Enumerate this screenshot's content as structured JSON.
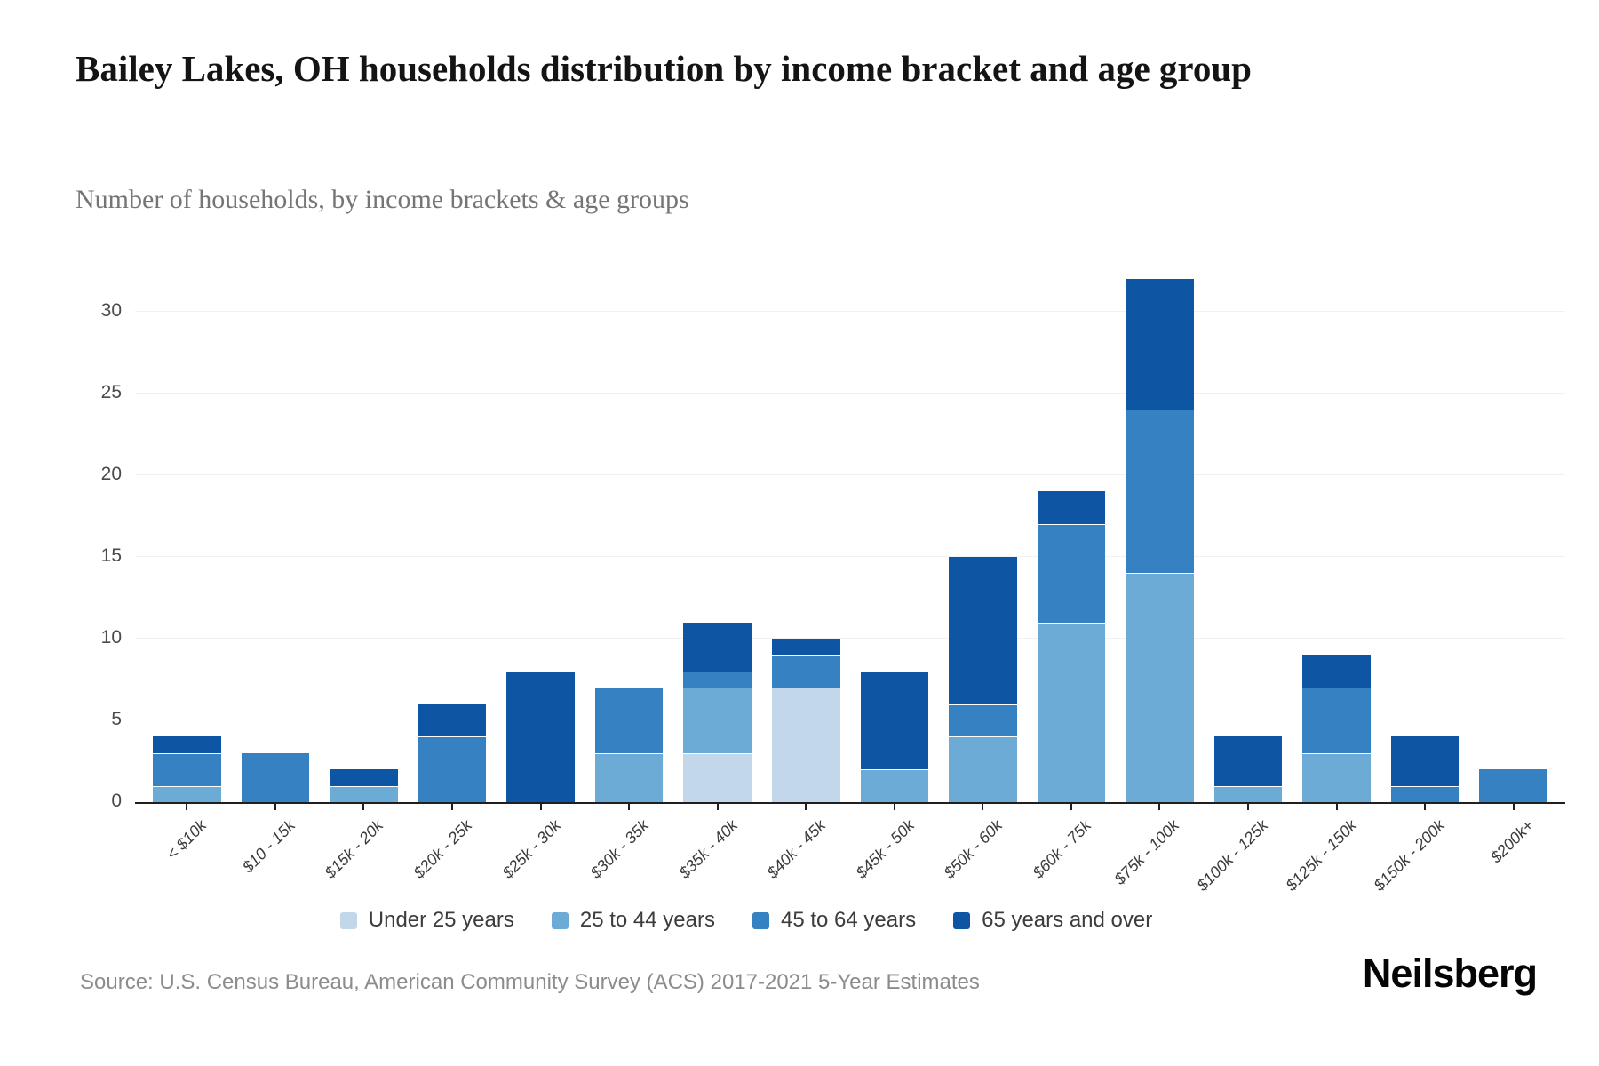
{
  "header": {
    "title": "Bailey Lakes, OH households distribution by income bracket and age group",
    "subtitle": "Number of households, by income brackets & age groups"
  },
  "source": {
    "text": "Source: U.S. Census Bureau, American Community Survey (ACS) 2017-2021 5-Year Estimates"
  },
  "brand": {
    "logo_text": "Neilsberg"
  },
  "chart_data": {
    "type": "bar",
    "stacked": true,
    "title": "Bailey Lakes, OH households distribution by income bracket and age group",
    "xlabel": "",
    "ylabel": "",
    "ylim": [
      0,
      33
    ],
    "yticks": [
      0,
      5,
      10,
      15,
      20,
      25,
      30
    ],
    "grid": true,
    "legend_position": "bottom",
    "categories": [
      "< $10k",
      "$10 - 15k",
      "$15k - 20k",
      "$20k - 25k",
      "$25k - 30k",
      "$30k - 35k",
      "$35k - 40k",
      "$40k - 45k",
      "$45k - 50k",
      "$50k - 60k",
      "$60k - 75k",
      "$75k - 100k",
      "$100k - 125k",
      "$125k - 150k",
      "$150k - 200k",
      "$200k+"
    ],
    "series": [
      {
        "name": "Under 25 years",
        "color": "#c2d8ea",
        "values": [
          0,
          0,
          0,
          0,
          0,
          0,
          3,
          7,
          0,
          0,
          0,
          0,
          0,
          0,
          0,
          0
        ]
      },
      {
        "name": "25 to 44 years",
        "color": "#6cabd6",
        "values": [
          1,
          0,
          1,
          0,
          0,
          3,
          4,
          0,
          2,
          4,
          11,
          14,
          1,
          3,
          0,
          0
        ]
      },
      {
        "name": "45 to 64 years",
        "color": "#3581c1",
        "values": [
          2,
          3,
          0,
          4,
          0,
          4,
          1,
          2,
          0,
          2,
          6,
          10,
          0,
          4,
          1,
          2
        ]
      },
      {
        "name": "65 years and over",
        "color": "#0e56a3",
        "values": [
          1,
          0,
          1,
          2,
          8,
          0,
          3,
          1,
          6,
          9,
          2,
          8,
          3,
          2,
          3,
          0
        ]
      }
    ],
    "totals": [
      4,
      3,
      2,
      6,
      8,
      7,
      11,
      10,
      8,
      15,
      19,
      32,
      4,
      9,
      4,
      2
    ],
    "axis_color": "#1f1f1f",
    "gridline_color": "#eff1f3"
  }
}
